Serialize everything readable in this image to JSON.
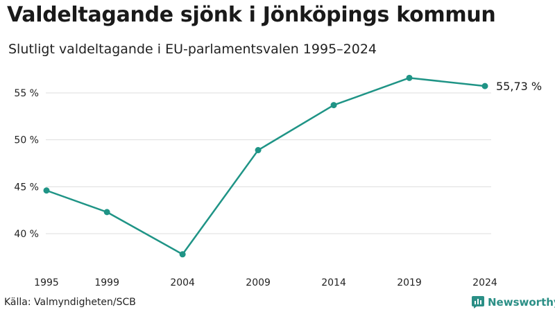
{
  "header": {
    "title": "Valdeltagande sjönk i Jönköpings kommun",
    "subtitle": "Slutligt valdeltagande i EU-parlamentsvalen 1995–2024"
  },
  "footer": {
    "source": "Källa: Valmyndigheten/SCB",
    "brand": "Newsworthy"
  },
  "colors": {
    "series": "#1f9486",
    "grid": "#dddddd",
    "brand": "#2b8f86"
  },
  "chart_data": {
    "type": "line",
    "title": "Valdeltagande sjönk i Jönköpings kommun",
    "subtitle": "Slutligt valdeltagande i EU-parlamentsvalen 1995–2024",
    "xlabel": "",
    "ylabel": "",
    "x": [
      1995,
      1999,
      2004,
      2009,
      2014,
      2019,
      2024
    ],
    "x_tick_labels": [
      "1995",
      "1999",
      "2004",
      "2009",
      "2014",
      "2019",
      "2024"
    ],
    "y_ticks": [
      40,
      45,
      50,
      55
    ],
    "y_tick_labels": [
      "40 %",
      "45 %",
      "50 %",
      "55 %"
    ],
    "ylim": [
      36.5,
      58
    ],
    "grid": true,
    "series": [
      {
        "name": "Valdeltagande",
        "values": [
          44.6,
          42.3,
          37.8,
          48.9,
          53.7,
          56.6,
          55.73
        ]
      }
    ],
    "end_label": "55,73 %"
  }
}
